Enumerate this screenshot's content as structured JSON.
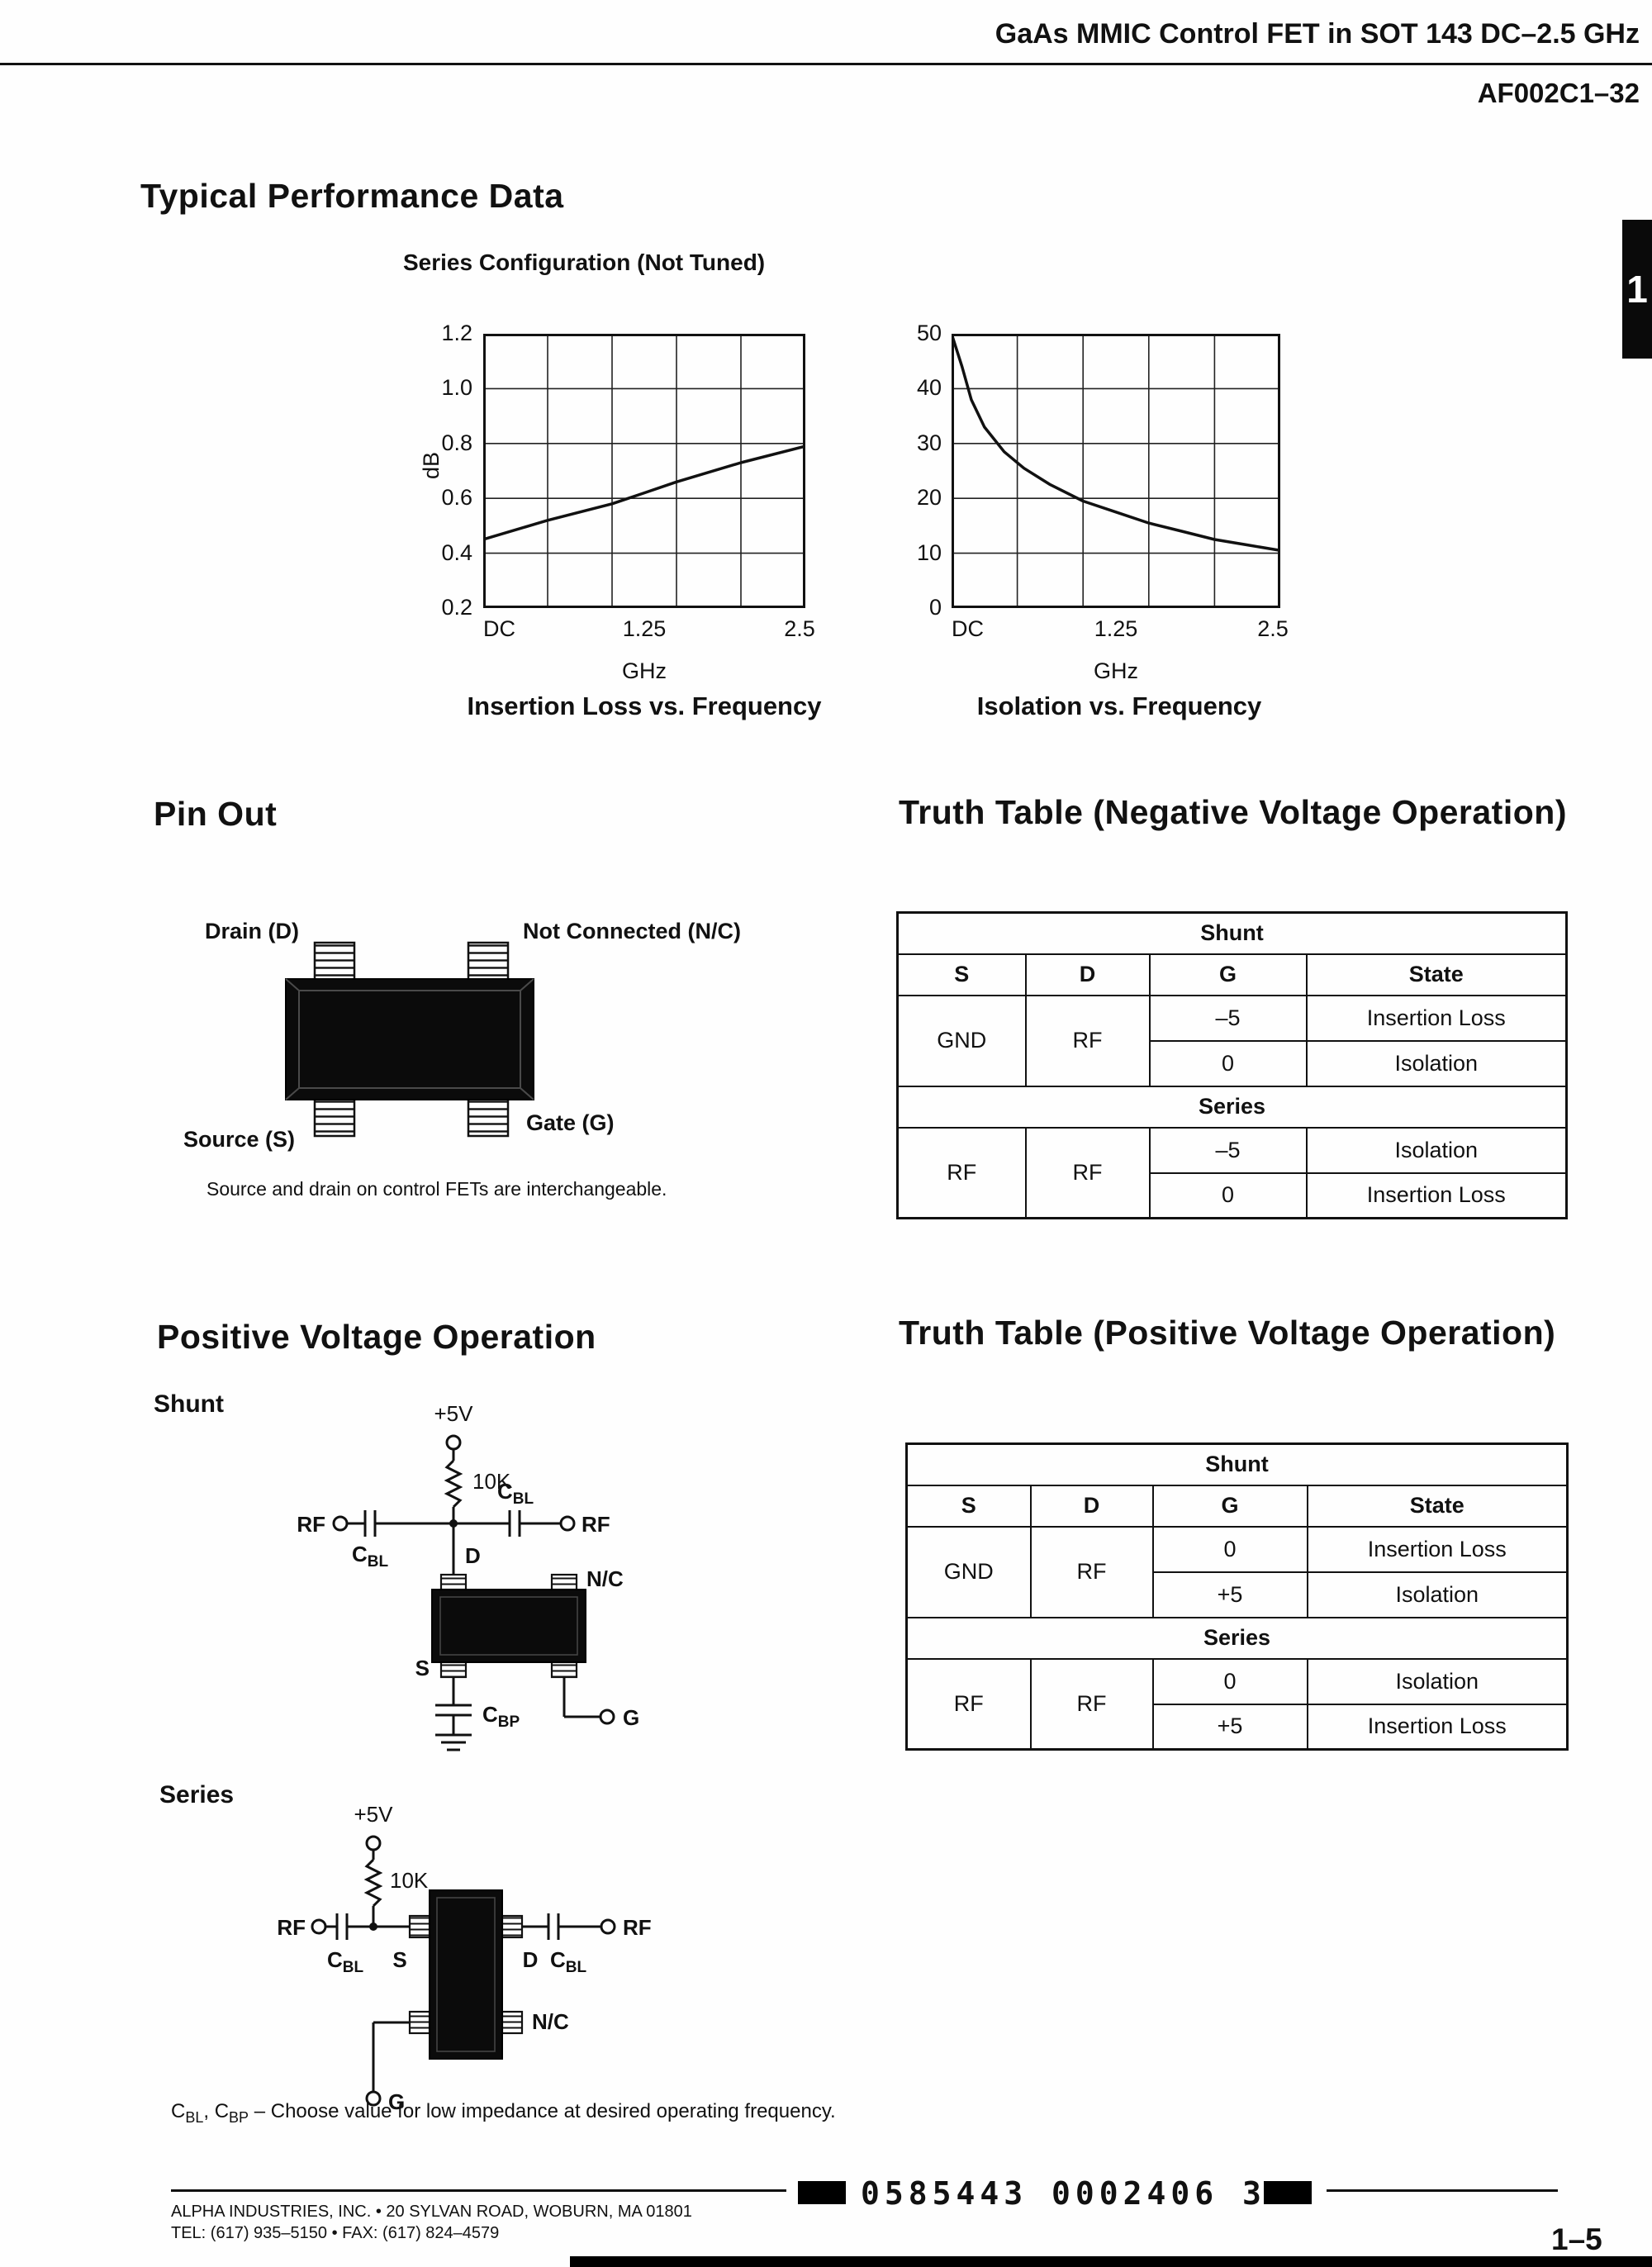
{
  "header": {
    "title": "GaAs MMIC Control FET in SOT 143 DC–2.5 GHz",
    "part_number": "AF002C1–32",
    "side_tab": "1"
  },
  "performance": {
    "heading": "Typical Performance Data",
    "subheading": "Series Configuration (Not Tuned)"
  },
  "chart_data": [
    {
      "type": "line",
      "title": "Insertion Loss vs. Frequency",
      "xlabel": "GHz",
      "ylabel": "dB",
      "x_ticks": [
        "DC",
        "1.25",
        "2.5"
      ],
      "y_ticks": [
        "1.2",
        "1.0",
        "0.8",
        "0.6",
        "0.4",
        "0.2"
      ],
      "xlim": [
        0,
        2.5
      ],
      "ylim": [
        0.2,
        1.2
      ],
      "grid": true,
      "legend": "none",
      "x": [
        0,
        0.5,
        1.0,
        1.25,
        1.5,
        2.0,
        2.5
      ],
      "values": [
        0.45,
        0.52,
        0.58,
        0.62,
        0.66,
        0.73,
        0.79
      ]
    },
    {
      "type": "line",
      "title": "Isolation vs. Frequency",
      "xlabel": "GHz",
      "ylabel": "",
      "x_ticks": [
        "DC",
        "1.25",
        "2.5"
      ],
      "y_ticks": [
        "50",
        "40",
        "30",
        "20",
        "10",
        "0"
      ],
      "xlim": [
        0,
        2.5
      ],
      "ylim": [
        0,
        50
      ],
      "grid": true,
      "legend": "none",
      "x": [
        0,
        0.08,
        0.15,
        0.25,
        0.4,
        0.55,
        0.75,
        1.0,
        1.25,
        1.5,
        1.75,
        2.0,
        2.25,
        2.5
      ],
      "values": [
        50,
        44,
        38,
        33,
        28.5,
        25.5,
        22.5,
        19.5,
        17.5,
        15.5,
        14,
        12.5,
        11.5,
        10.5
      ]
    }
  ],
  "pinout": {
    "heading": "Pin Out",
    "drain": "Drain (D)",
    "nc": "Not Connected (N/C)",
    "source": "Source (S)",
    "gate": "Gate (G)",
    "caption": "Source and drain on control FETs are interchangeable."
  },
  "truth_neg": {
    "heading": "Truth Table (Negative Voltage Operation)",
    "shunt_label": "Shunt",
    "series_label": "Series",
    "headers": [
      "S",
      "D",
      "G",
      "State"
    ],
    "shunt": {
      "s": "GND",
      "d": "RF",
      "rows": [
        [
          "–5",
          "Insertion Loss"
        ],
        [
          "0",
          "Isolation"
        ]
      ]
    },
    "series": {
      "s": "RF",
      "d": "RF",
      "rows": [
        [
          "–5",
          "Isolation"
        ],
        [
          "0",
          "Insertion Loss"
        ]
      ]
    }
  },
  "positive": {
    "heading": "Positive Voltage Operation",
    "shunt_label": "Shunt",
    "series_label": "Series"
  },
  "truth_pos": {
    "heading": "Truth Table (Positive Voltage Operation)",
    "shunt_label": "Shunt",
    "series_label": "Series",
    "headers": [
      "S",
      "D",
      "G",
      "State"
    ],
    "shunt": {
      "s": "GND",
      "d": "RF",
      "rows": [
        [
          "0",
          "Insertion Loss"
        ],
        [
          "+5",
          "Isolation"
        ]
      ]
    },
    "series": {
      "s": "RF",
      "d": "RF",
      "rows": [
        [
          "0",
          "Isolation"
        ],
        [
          "+5",
          "Insertion Loss"
        ]
      ]
    }
  },
  "sch": {
    "supply": "+5V",
    "resistor": "10K",
    "rf": "RF",
    "c": "C",
    "bl": "BL",
    "bp": "BP",
    "d": "D",
    "s": "S",
    "g": "G",
    "nc": "N/C"
  },
  "footnote": {
    "c1": "C",
    "sub1": "BL",
    "mid": ", C",
    "sub2": "BP",
    "rest": " – Choose value for low impedance at desired operating frequency."
  },
  "footer": {
    "address": "ALPHA INDUSTRIES, INC. • 20 SYLVAN ROAD, WOBURN, MA 01801",
    "phone": "TEL: (617) 935–5150 • FAX: (617) 824–4579",
    "barcode": "0585443 0002406 311",
    "page": "1–5"
  }
}
